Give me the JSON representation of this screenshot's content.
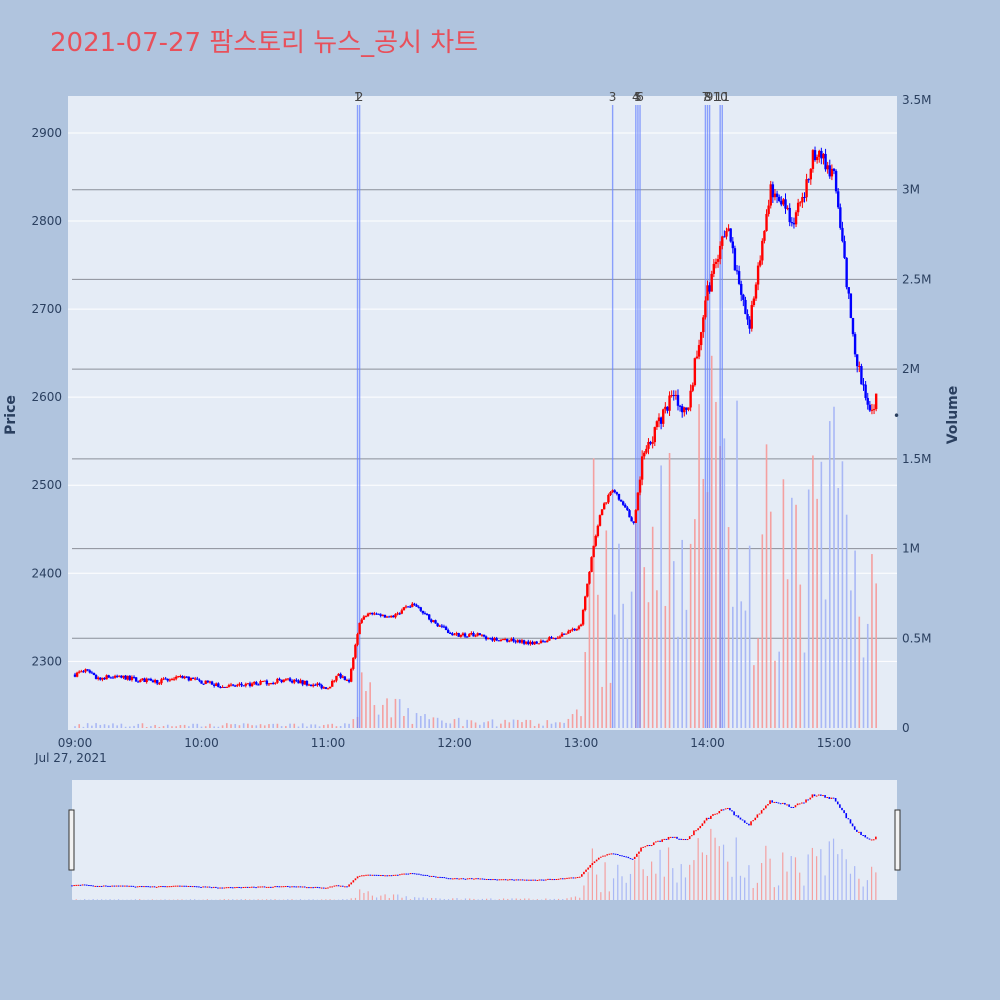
{
  "title": "2021-07-27 팜스토리 뉴스_공시 차트",
  "colors": {
    "paper": "#b0c4de",
    "plot": "#e5ecf6",
    "up": "#ff0000",
    "down": "#0000ff",
    "title": "#e8505b",
    "marker": "#6b86ff"
  },
  "chart_data": {
    "type": "candlestick+bar",
    "title": "2021-07-27 팜스토리 뉴스_공시 차트",
    "x_axis": {
      "type": "time",
      "range": [
        "09:00",
        "15:30"
      ],
      "tick_labels": [
        "09:00",
        "10:00",
        "11:00",
        "12:00",
        "13:00",
        "14:00",
        "15:00"
      ],
      "date_label": "Jul 27, 2021"
    },
    "y_price": {
      "label": "Price",
      "range": [
        2222,
        2942
      ],
      "tick_labels": [
        "2300",
        "2400",
        "2500",
        "2600",
        "2700",
        "2800",
        "2900"
      ]
    },
    "y_volume": {
      "label": "Volume",
      "range": [
        0,
        3500000
      ],
      "tick_labels": [
        "0",
        "0.5M",
        "1M",
        "1.5M",
        "2M",
        "2.5M",
        "3M",
        "3.5M"
      ]
    },
    "price_series": [
      [
        "09:00",
        2285
      ],
      [
        "09:05",
        2290
      ],
      [
        "09:10",
        2281
      ],
      [
        "09:20",
        2283
      ],
      [
        "09:30",
        2279
      ],
      [
        "09:40",
        2277
      ],
      [
        "09:50",
        2283
      ],
      [
        "10:00",
        2277
      ],
      [
        "10:10",
        2271
      ],
      [
        "10:20",
        2273
      ],
      [
        "10:30",
        2276
      ],
      [
        "10:40",
        2279
      ],
      [
        "10:50",
        2275
      ],
      [
        "11:00",
        2270
      ],
      [
        "11:05",
        2285
      ],
      [
        "11:10",
        2275
      ],
      [
        "11:15",
        2345
      ],
      [
        "11:20",
        2355
      ],
      [
        "11:30",
        2350
      ],
      [
        "11:40",
        2365
      ],
      [
        "11:50",
        2345
      ],
      [
        "12:00",
        2330
      ],
      [
        "12:10",
        2330
      ],
      [
        "12:20",
        2325
      ],
      [
        "12:30",
        2323
      ],
      [
        "12:40",
        2321
      ],
      [
        "12:50",
        2330
      ],
      [
        "13:00",
        2340
      ],
      [
        "13:05",
        2420
      ],
      [
        "13:10",
        2475
      ],
      [
        "13:15",
        2495
      ],
      [
        "13:20",
        2480
      ],
      [
        "13:25",
        2455
      ],
      [
        "13:30",
        2545
      ],
      [
        "13:35",
        2560
      ],
      [
        "13:40",
        2590
      ],
      [
        "13:45",
        2600
      ],
      [
        "13:50",
        2580
      ],
      [
        "13:55",
        2650
      ],
      [
        "14:00",
        2720
      ],
      [
        "14:05",
        2760
      ],
      [
        "14:10",
        2800
      ],
      [
        "14:15",
        2720
      ],
      [
        "14:20",
        2680
      ],
      [
        "14:25",
        2760
      ],
      [
        "14:30",
        2840
      ],
      [
        "14:35",
        2820
      ],
      [
        "14:40",
        2800
      ],
      [
        "14:45",
        2820
      ],
      [
        "14:50",
        2880
      ],
      [
        "14:55",
        2870
      ],
      [
        "15:00",
        2850
      ],
      [
        "15:05",
        2750
      ],
      [
        "15:10",
        2650
      ],
      [
        "15:15",
        2600
      ],
      [
        "15:18",
        2590
      ],
      [
        "15:20",
        2600
      ]
    ],
    "volume_profile": [
      [
        "09:00",
        20000
      ],
      [
        "11:10",
        20000
      ],
      [
        "11:15",
        250000
      ],
      [
        "11:30",
        150000
      ],
      [
        "11:40",
        80000
      ],
      [
        "12:00",
        40000
      ],
      [
        "12:50",
        30000
      ],
      [
        "13:00",
        100000
      ],
      [
        "13:05",
        1400000
      ],
      [
        "13:10",
        800000
      ],
      [
        "13:20",
        700000
      ],
      [
        "13:30",
        1000000
      ],
      [
        "13:40",
        1200000
      ],
      [
        "13:50",
        900000
      ],
      [
        "14:00",
        1500000
      ],
      [
        "14:10",
        1400000
      ],
      [
        "14:20",
        1200000
      ],
      [
        "14:30",
        1300000
      ],
      [
        "14:40",
        900000
      ],
      [
        "14:50",
        1500000
      ],
      [
        "15:00",
        1400000
      ],
      [
        "15:10",
        900000
      ],
      [
        "15:20",
        700000
      ]
    ],
    "news_markers": [
      {
        "label": "1",
        "time": "11:14"
      },
      {
        "label": "2",
        "time": "11:15"
      },
      {
        "label": "3",
        "time": "13:15"
      },
      {
        "label": "4",
        "time": "13:26"
      },
      {
        "label": "5",
        "time": "13:27"
      },
      {
        "label": "6",
        "time": "13:28"
      },
      {
        "label": "7",
        "time": "13:59"
      },
      {
        "label": "8",
        "time": "14:00"
      },
      {
        "label": "9",
        "time": "14:01"
      },
      {
        "label": "10",
        "time": "14:06"
      },
      {
        "label": "11",
        "time": "14:07"
      }
    ],
    "legend": "none",
    "grid": true
  }
}
